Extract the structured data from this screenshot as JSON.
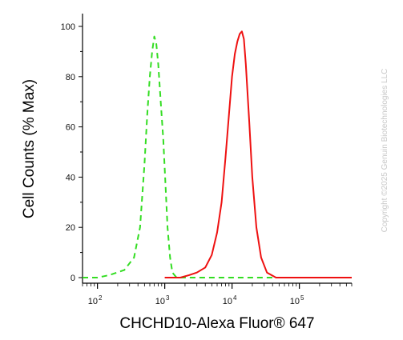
{
  "chart_data": {
    "type": "line",
    "title": "",
    "xlabel": "CHCHD10-Alexa Fluor® 647",
    "ylabel": "Cell Counts (% Max)",
    "x_scale": "log",
    "xlim": [
      60,
      600000
    ],
    "ylim": [
      0,
      100
    ],
    "grid": false,
    "legend": "none",
    "y_ticks": [
      0,
      20,
      40,
      60,
      80,
      100
    ],
    "y_tick_labels": [
      "0",
      "20",
      "40",
      "60",
      "80",
      "100"
    ],
    "x_ticks": [
      100,
      1000,
      10000,
      100000
    ],
    "x_tick_bases": [
      "10",
      "10",
      "10",
      "10"
    ],
    "x_tick_exponents": [
      "2",
      "3",
      "4",
      "5"
    ],
    "series": [
      {
        "color": "#33dd22",
        "style": "dashed",
        "x": [
          60,
          100,
          150,
          250,
          350,
          430,
          500,
          550,
          600,
          650,
          700,
          750,
          800,
          870,
          950,
          1020,
          1100,
          1200,
          1300,
          1500,
          2000,
          5000,
          600000
        ],
        "y": [
          0,
          0,
          1,
          3,
          8,
          20,
          45,
          65,
          80,
          90,
          96,
          93,
          85,
          70,
          55,
          38,
          20,
          8,
          2,
          0,
          0,
          0,
          0
        ]
      },
      {
        "color": "#ee1111",
        "style": "solid",
        "x": [
          1000,
          1700,
          2300,
          3000,
          4000,
          5000,
          6000,
          7000,
          8000,
          9000,
          10000,
          11000,
          12000,
          13000,
          14000,
          15000,
          16000,
          18000,
          20000,
          23000,
          27000,
          33000,
          45000,
          100000,
          600000
        ],
        "y": [
          0,
          0,
          1,
          2,
          4,
          9,
          18,
          30,
          48,
          65,
          80,
          89,
          94,
          97,
          98,
          95,
          85,
          62,
          40,
          20,
          8,
          2,
          0,
          0,
          0
        ]
      }
    ]
  },
  "watermark": "Copyright ©2025 Genuin Biotechnologies LLC"
}
